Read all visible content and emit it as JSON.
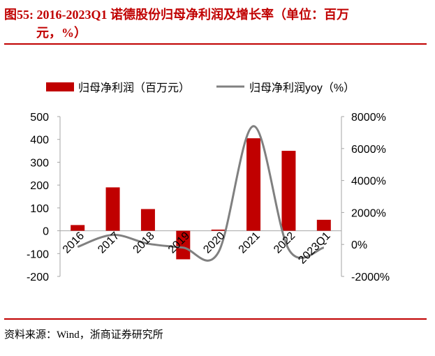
{
  "figure": {
    "title_line1": "图55:   2016-2023Q1 诺德股份归母净利润及增长率（单位：百万",
    "title_line2": "元，%）",
    "source": "资料来源：Wind，浙商证券研究所"
  },
  "chart_data": {
    "type": "bar",
    "categories": [
      "2016",
      "2017",
      "2018",
      "2019",
      "2020",
      "2021",
      "2022",
      "2023Q1"
    ],
    "series": [
      {
        "name": "归母净利润（百万元）",
        "type": "bar",
        "axis": "left",
        "color": "#c00000",
        "values": [
          25,
          190,
          95,
          -125,
          5,
          405,
          350,
          48
        ]
      },
      {
        "name": "归母净利润yoy（%）",
        "type": "line",
        "axis": "right",
        "color": "#808080",
        "values": [
          -150,
          600,
          50,
          -200,
          -500,
          7400,
          -300,
          -200
        ]
      }
    ],
    "y_left": {
      "ticks": [
        "500",
        "400",
        "300",
        "200",
        "100",
        "0",
        "-100",
        "-200"
      ],
      "ylim": [
        -200,
        500
      ]
    },
    "y_right": {
      "ticks": [
        "8000%",
        "6000%",
        "4000%",
        "2000%",
        "0%",
        "-2000%"
      ],
      "ylim": [
        -2000,
        8000
      ]
    },
    "legend_position": "top",
    "grid": false
  }
}
